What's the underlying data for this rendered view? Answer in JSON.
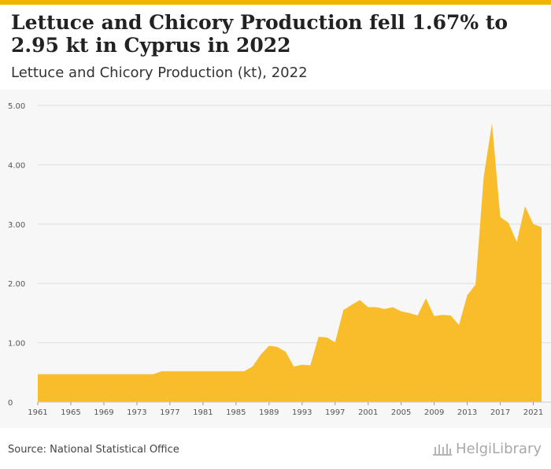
{
  "header": {
    "title": "Lettuce and Chicory Production fell 1.67% to 2.95 kt in Cyprus in 2022",
    "subtitle": "Lettuce and Chicory Production (kt), 2022"
  },
  "footer": {
    "source": "Source: National Statistical Office",
    "brand": "HelgiLibrary"
  },
  "colors": {
    "accent": "#f5b301",
    "area": "#f9bd2c",
    "grid": "#dedede",
    "panel": "#f7f7f7"
  },
  "chart_data": {
    "type": "area",
    "title": "",
    "xlabel": "",
    "ylabel": "",
    "ylim": [
      0,
      5
    ],
    "xlim": [
      1961,
      2022
    ],
    "grid": true,
    "y_ticks": [
      "0",
      "1.00",
      "2.00",
      "3.00",
      "4.00",
      "5.00"
    ],
    "x_ticks": [
      "1961",
      "1965",
      "1969",
      "1973",
      "1977",
      "1981",
      "1985",
      "1989",
      "1993",
      "1997",
      "2001",
      "2005",
      "2009",
      "2013",
      "2017",
      "2021"
    ],
    "x": [
      1961,
      1962,
      1963,
      1964,
      1965,
      1966,
      1967,
      1968,
      1969,
      1970,
      1971,
      1972,
      1973,
      1974,
      1975,
      1976,
      1977,
      1978,
      1979,
      1980,
      1981,
      1982,
      1983,
      1984,
      1985,
      1986,
      1987,
      1988,
      1989,
      1990,
      1991,
      1992,
      1993,
      1994,
      1995,
      1996,
      1997,
      1998,
      1999,
      2000,
      2001,
      2002,
      2003,
      2004,
      2005,
      2006,
      2007,
      2008,
      2009,
      2010,
      2011,
      2012,
      2013,
      2014,
      2015,
      2016,
      2017,
      2018,
      2019,
      2020,
      2021,
      2022
    ],
    "values": [
      0.47,
      0.47,
      0.47,
      0.47,
      0.47,
      0.47,
      0.47,
      0.47,
      0.47,
      0.47,
      0.47,
      0.47,
      0.47,
      0.47,
      0.47,
      0.52,
      0.52,
      0.52,
      0.52,
      0.52,
      0.52,
      0.52,
      0.52,
      0.52,
      0.52,
      0.52,
      0.6,
      0.8,
      0.95,
      0.93,
      0.85,
      0.6,
      0.63,
      0.62,
      1.1,
      1.09,
      1.01,
      1.55,
      1.64,
      1.72,
      1.6,
      1.6,
      1.57,
      1.6,
      1.53,
      1.5,
      1.46,
      1.75,
      1.45,
      1.47,
      1.46,
      1.3,
      1.8,
      1.98,
      3.8,
      4.7,
      3.12,
      3.02,
      2.7,
      3.3,
      3.0,
      2.95
    ]
  }
}
